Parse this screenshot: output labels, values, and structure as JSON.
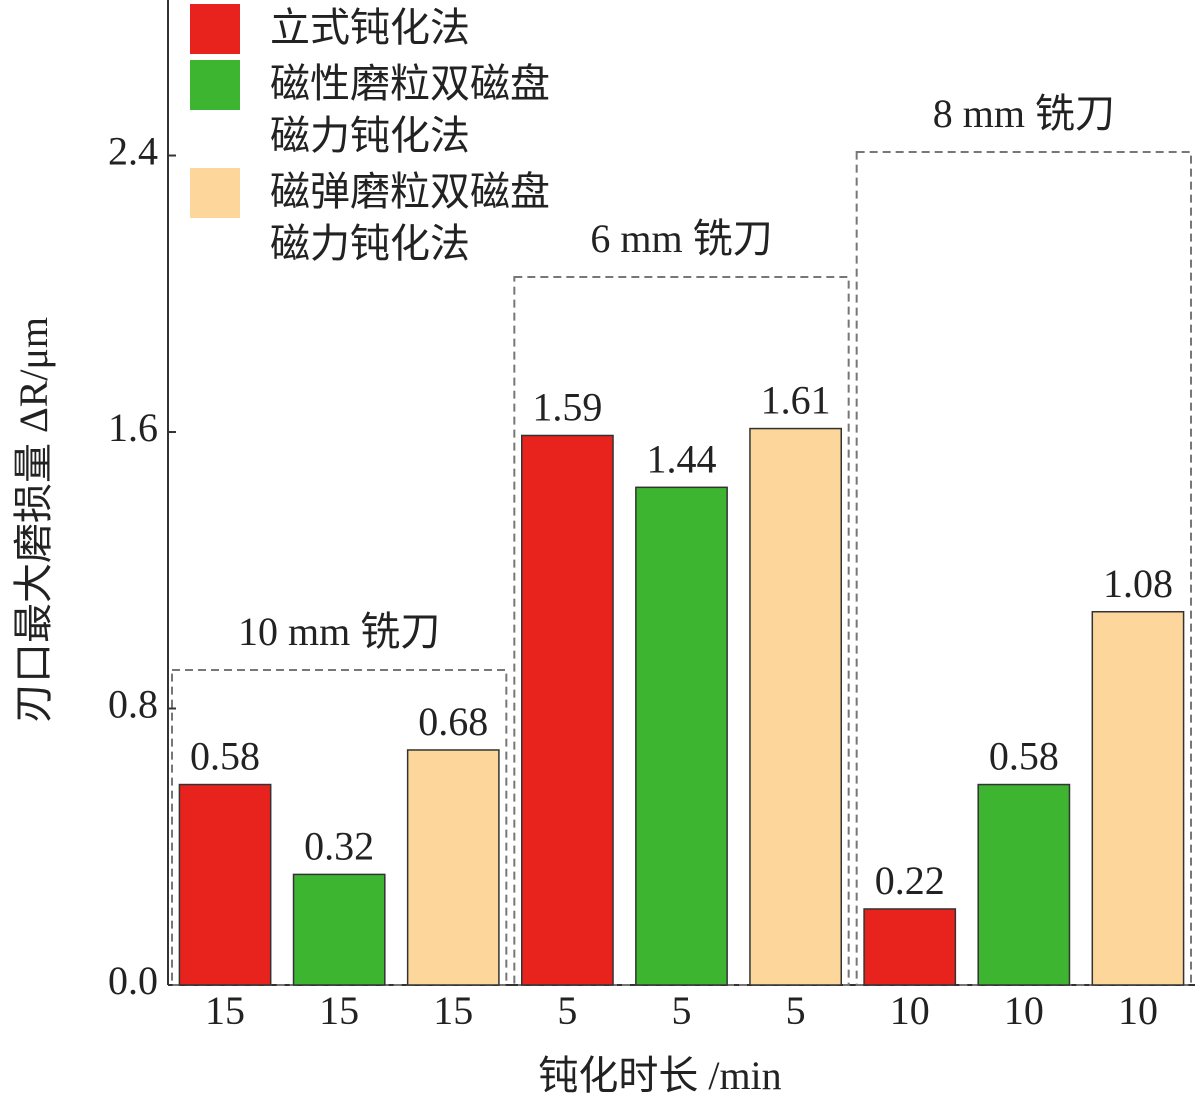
{
  "chart_data": {
    "type": "bar",
    "y_label": "刃口最大磨损量 ΔR/μm",
    "x_label": "钝化时长 /min",
    "groups": [
      {
        "label": "10 mm 铣刀",
        "x_labels": [
          "15",
          "15",
          "15"
        ]
      },
      {
        "label": "6 mm 铣刀",
        "x_labels": [
          "5",
          "5",
          "5"
        ]
      },
      {
        "label": "8 mm 铣刀",
        "x_labels": [
          "10",
          "10",
          "10"
        ]
      }
    ],
    "series": [
      {
        "name": "立式钝化法",
        "color": "#e8221d",
        "values": [
          0.58,
          1.59,
          0.22
        ]
      },
      {
        "name": "磁性磨粒双磁盘磁力钝化法",
        "color": "#3db531",
        "values": [
          0.32,
          1.44,
          0.58
        ]
      },
      {
        "name": "磁弹磨粒双磁盘磁力钝化法",
        "color": "#fcd69a",
        "values": [
          0.68,
          1.61,
          1.08
        ]
      }
    ],
    "ylim": [
      0,
      2.85
    ],
    "yticks": [
      {
        "value": 0,
        "label": "0.0"
      },
      0.8,
      1.6,
      2.4
    ],
    "legend": "upper left"
  }
}
